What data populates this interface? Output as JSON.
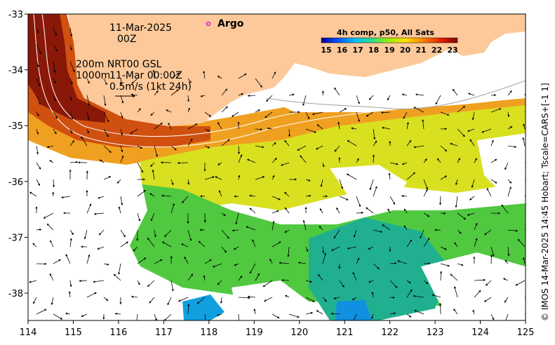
{
  "annotations": {
    "date": "11-Mar-2025",
    "hour": "00Z",
    "contours_line": "200m  NRT00 GSL",
    "contour_depth": "1000m",
    "analysis_time": "11-Mar 00:00Z",
    "vector_scale": "0.5m/s (1kt 24h)"
  },
  "legend": {
    "argo_label": "Argo",
    "argo_color": "#e020e0"
  },
  "colorbar": {
    "title": "4h comp, p50, All Sats",
    "ticks": [
      "15",
      "16",
      "17",
      "18",
      "19",
      "20",
      "21",
      "22",
      "23"
    ],
    "colors": [
      "#00008f",
      "#0050ff",
      "#00c0ff",
      "#30e080",
      "#a0f000",
      "#ffe000",
      "#ff8000",
      "#e02000",
      "#800000"
    ]
  },
  "axes": {
    "x_ticks": [
      "114",
      "115",
      "116",
      "117",
      "118",
      "119",
      "120",
      "121",
      "122",
      "123",
      "124",
      "125"
    ],
    "y_ticks": [
      "-33",
      "-34",
      "-35",
      "-36",
      "-37",
      "-38"
    ]
  },
  "credit": "© IMOS 14-Mar-2025 14:45 Hobart; Tscale=CARS+[-1 1]",
  "colors": {
    "land": "#fdc99a",
    "frame": "#000000"
  }
}
